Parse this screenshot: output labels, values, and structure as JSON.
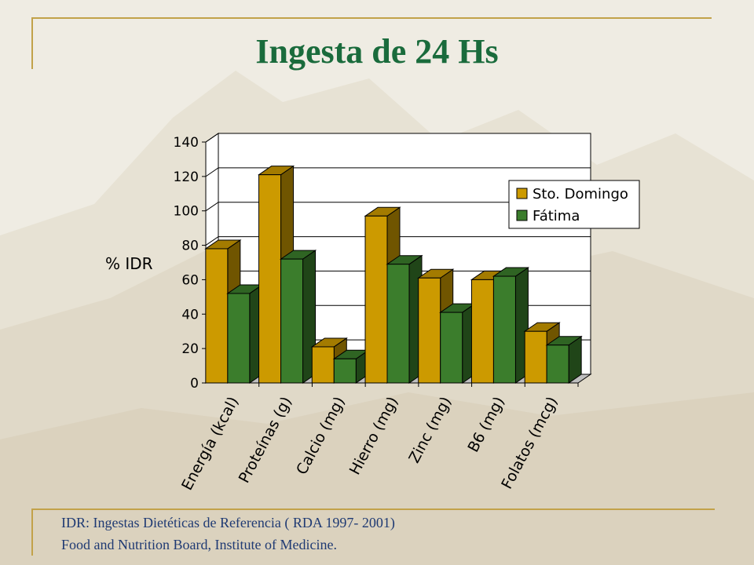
{
  "title": "Ingesta de 24 Hs",
  "footnotes": [
    "IDR: Ingestas Dietéticas de Referencia ( RDA 1997- 2001)",
    "Food and Nutrition Board, Institute of  Medicine."
  ],
  "colors": {
    "title": "#1a6b3c",
    "footnote": "#1f3a73",
    "frame": "#c2a24a",
    "background": "#efece3"
  },
  "chart_data": {
    "type": "bar",
    "title": "",
    "xlabel": "",
    "ylabel": "% IDR",
    "ylim": [
      0,
      140
    ],
    "yticks": [
      0,
      20,
      40,
      60,
      80,
      100,
      120,
      140
    ],
    "grid": true,
    "legend_position": "top-right",
    "categories": [
      "Energía (kcal)",
      "Proteínas (g)",
      "Calcio (mg)",
      "Hierro (mg)",
      "Zinc (mg)",
      "B6 (mg)",
      "Folatos (mcg)"
    ],
    "series": [
      {
        "name": "Sto. Domingo",
        "color": "#cc9a00",
        "values": [
          78,
          121,
          21,
          97,
          61,
          60,
          30
        ]
      },
      {
        "name": "Fátima",
        "color": "#3b7d2c",
        "values": [
          52,
          72,
          14,
          69,
          41,
          62,
          22
        ]
      }
    ]
  }
}
